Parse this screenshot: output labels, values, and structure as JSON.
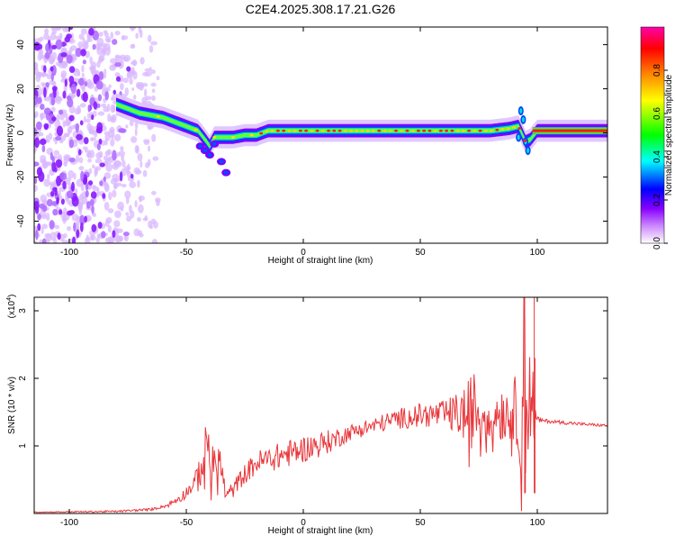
{
  "title": "C2E4.2025.308.17.21.G26",
  "chart_data": [
    {
      "type": "heatmap",
      "xlabel": "Height of straight line (km)",
      "ylabel": "Frequency (Hz)",
      "xlim": [
        -115,
        130
      ],
      "ylim": [
        -50,
        48
      ],
      "x_ticks": [
        -100,
        -50,
        0,
        50,
        100
      ],
      "x_tick_labels": [
        "-100",
        "-50",
        "0",
        "50",
        "100"
      ],
      "y_ticks": [
        -40,
        -20,
        0,
        20,
        40
      ],
      "y_tick_labels": [
        "-40",
        "-20",
        "0",
        "20",
        "40"
      ],
      "colorbar": {
        "label": "Normalized spectral amplitude",
        "range": [
          0,
          1
        ],
        "ticks": [
          0.0,
          0.2,
          0.4,
          0.6,
          0.8
        ],
        "tick_labels": [
          "0.0",
          "0.2",
          "0.4",
          "0.6",
          "0.8"
        ],
        "colors": [
          "#ffffff",
          "#cc88ff",
          "#8800ff",
          "#0000ff",
          "#00ffff",
          "#00ff00",
          "#ffff00",
          "#ff8800",
          "#ff0000",
          "#ff00aa"
        ]
      },
      "ridge": {
        "x": [
          -80,
          -75,
          -70,
          -65,
          -60,
          -55,
          -50,
          -45,
          -42,
          -40,
          -38,
          -35,
          -30,
          -25,
          -20,
          -15,
          -10,
          0,
          10,
          20,
          30,
          40,
          50,
          60,
          70,
          80,
          88,
          92,
          95,
          97,
          100,
          110,
          120,
          130
        ],
        "y": [
          13,
          11,
          9,
          8,
          7,
          5,
          3,
          1,
          -3,
          -6,
          -2,
          -2,
          -2,
          -1,
          -1,
          1,
          1,
          1,
          1,
          1,
          1,
          1,
          1,
          1,
          1,
          1,
          2,
          3,
          -4,
          -3,
          1,
          1,
          1,
          1
        ]
      },
      "noise_region_x": [
        -115,
        -62
      ]
    },
    {
      "type": "line",
      "xlabel": "Height of straight line (km)",
      "ylabel": "SNR (10 * v/v)",
      "scale_note_base": "(x10",
      "scale_note_exp": "4",
      "scale_note_close": ")",
      "xlim": [
        -115,
        130
      ],
      "ylim": [
        0,
        3.2
      ],
      "x_ticks": [
        -100,
        -50,
        0,
        50,
        100
      ],
      "x_tick_labels": [
        "-100",
        "-50",
        "0",
        "50",
        "100"
      ],
      "y_ticks": [
        1,
        2,
        3
      ],
      "y_tick_labels": [
        "1",
        "2",
        "3"
      ],
      "color": "#e8363a",
      "envelope": {
        "x": [
          -115,
          -80,
          -65,
          -58,
          -52,
          -46,
          -43,
          -41,
          -40,
          -38,
          -36,
          -33,
          -30,
          -26,
          -20,
          -10,
          0,
          10,
          20,
          30,
          40,
          50,
          60,
          70,
          73,
          75,
          80,
          85,
          90,
          93,
          94,
          95,
          96,
          97,
          98,
          99,
          100,
          110,
          120,
          130
        ],
        "y": [
          0.02,
          0.03,
          0.06,
          0.12,
          0.25,
          0.45,
          0.75,
          1.1,
          0.9,
          0.6,
          0.85,
          0.25,
          0.35,
          0.55,
          0.75,
          0.85,
          0.95,
          1.05,
          1.2,
          1.3,
          1.4,
          1.45,
          1.47,
          1.47,
          1.6,
          1.45,
          1.5,
          1.5,
          1.5,
          1.7,
          2.4,
          2.2,
          1.4,
          2.2,
          1.4,
          1.35,
          1.38,
          1.35,
          1.32,
          1.3
        ]
      },
      "amplitude": {
        "x": [
          -115,
          -60,
          -48,
          -44,
          -40,
          -36,
          -34,
          -30,
          -20,
          -10,
          0,
          10,
          20,
          30,
          40,
          50,
          60,
          65,
          70,
          72,
          74,
          80,
          85,
          90,
          92,
          94,
          95,
          96,
          97,
          98,
          99,
          100,
          101,
          130
        ],
        "y": [
          0.005,
          0.02,
          0.1,
          0.28,
          0.4,
          0.3,
          0.15,
          0.12,
          0.18,
          0.2,
          0.2,
          0.18,
          0.12,
          0.12,
          0.15,
          0.18,
          0.2,
          0.3,
          0.45,
          0.6,
          0.4,
          0.35,
          0.45,
          0.4,
          0.9,
          1.3,
          1.0,
          0.5,
          1.5,
          1.0,
          0.3,
          0.12,
          0.03,
          0.02
        ]
      }
    }
  ]
}
